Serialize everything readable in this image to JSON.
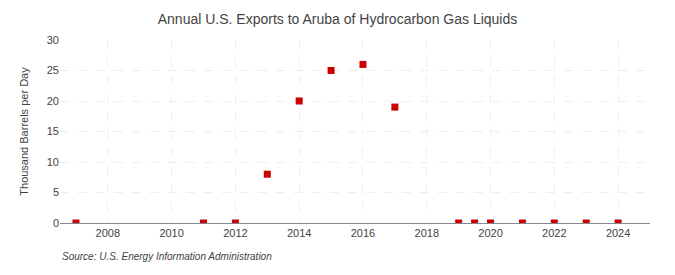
{
  "chart_data": {
    "type": "scatter",
    "title": "Annual U.S. Exports to Aruba of Hydrocarbon Gas Liquids",
    "ylabel": "Thousand Barrels per Day",
    "annotations": [
      "Source: U.S. Energy Information Administration"
    ],
    "x": [
      2007,
      2011,
      2012,
      2013,
      2014,
      2015,
      2016,
      2017,
      2019,
      2019.5,
      2020,
      2021,
      2022,
      2023,
      2024
    ],
    "values": [
      0,
      0,
      0,
      8,
      20,
      25,
      26,
      19,
      0,
      0,
      0,
      0,
      0,
      0,
      0
    ],
    "color": "#cc0000",
    "marker": "square",
    "xlim": [
      2006.5,
      2025.0
    ],
    "xticks": [
      2008,
      2010,
      2012,
      2014,
      2016,
      2018,
      2020,
      2022,
      2024
    ],
    "ylim": [
      0,
      30
    ],
    "yticks": [
      0,
      5,
      10,
      15,
      20,
      25,
      30
    ],
    "grid": true
  }
}
